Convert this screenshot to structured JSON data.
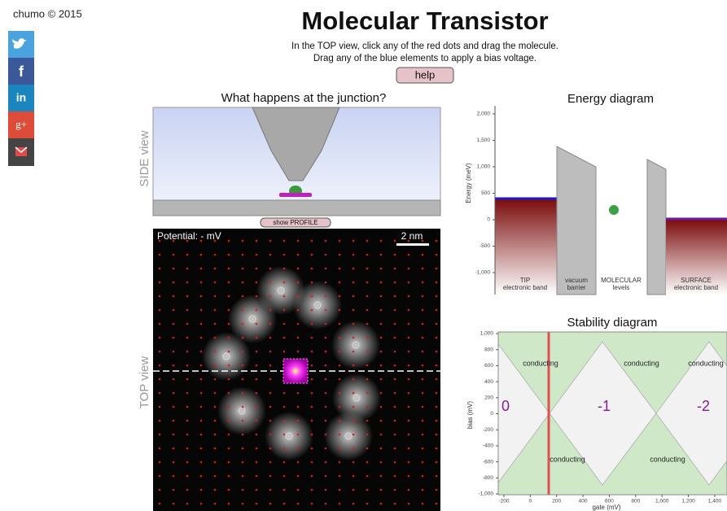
{
  "credit": "chumo © 2015",
  "share_icons": {
    "facebook": "f",
    "linkedin": "in",
    "google": "g+"
  },
  "header": {
    "title": "Molecular Transistor",
    "instructions": [
      "In the TOP view, click any of the red dots and drag the molecule.",
      "Drag any of the blue elements to apply a bias voltage."
    ],
    "help": "help"
  },
  "junction": {
    "title": "What happens at the junction?",
    "side_label": "SIDE view",
    "profile_button": "show PROFILE",
    "top_label": "TOP view",
    "potential": "Potential: - mV",
    "scale": "2 nm"
  },
  "energy": {
    "title": "Energy diagram",
    "y_label": "Energy (meV)",
    "ylim": [
      -1415,
      2154
    ],
    "yticks": [
      {
        "value": 2000,
        "label": "2,000"
      },
      {
        "value": 1500,
        "label": "1,500"
      },
      {
        "value": 1000,
        "label": "1,000"
      },
      500,
      0,
      -500,
      {
        "value": -1000,
        "label": "-1,000"
      }
    ],
    "regions": [
      [
        "TIP",
        "electronic band"
      ],
      [
        "vacuum",
        "barrier"
      ],
      [
        "MOLECULAR",
        "levels"
      ],
      [
        "SURFACE",
        "electronic band"
      ]
    ]
  },
  "stability": {
    "title": "Stability diagram",
    "x_label": "gate (mV)",
    "y_label": "bias (mV)",
    "xlim": [
      -243,
      1493
    ],
    "ylim": [
      -1000,
      1000
    ],
    "xticks": [
      -200,
      0,
      200,
      400,
      600,
      800,
      {
        "value": 1000,
        "label": "1,000"
      },
      {
        "value": 1200,
        "label": "1,200"
      },
      {
        "value": 1400,
        "label": "1,400"
      }
    ],
    "yticks": [
      {
        "value": 1000,
        "label": "1,000"
      },
      800,
      600,
      400,
      200,
      0,
      -200,
      -400,
      -600,
      -800,
      {
        "value": -1000,
        "label": "-1,000"
      }
    ],
    "states": [
      "0",
      "-1",
      "-2"
    ],
    "conducting": [
      "conducting",
      "conducting",
      "conducting",
      "conducting",
      "conducting"
    ]
  }
}
